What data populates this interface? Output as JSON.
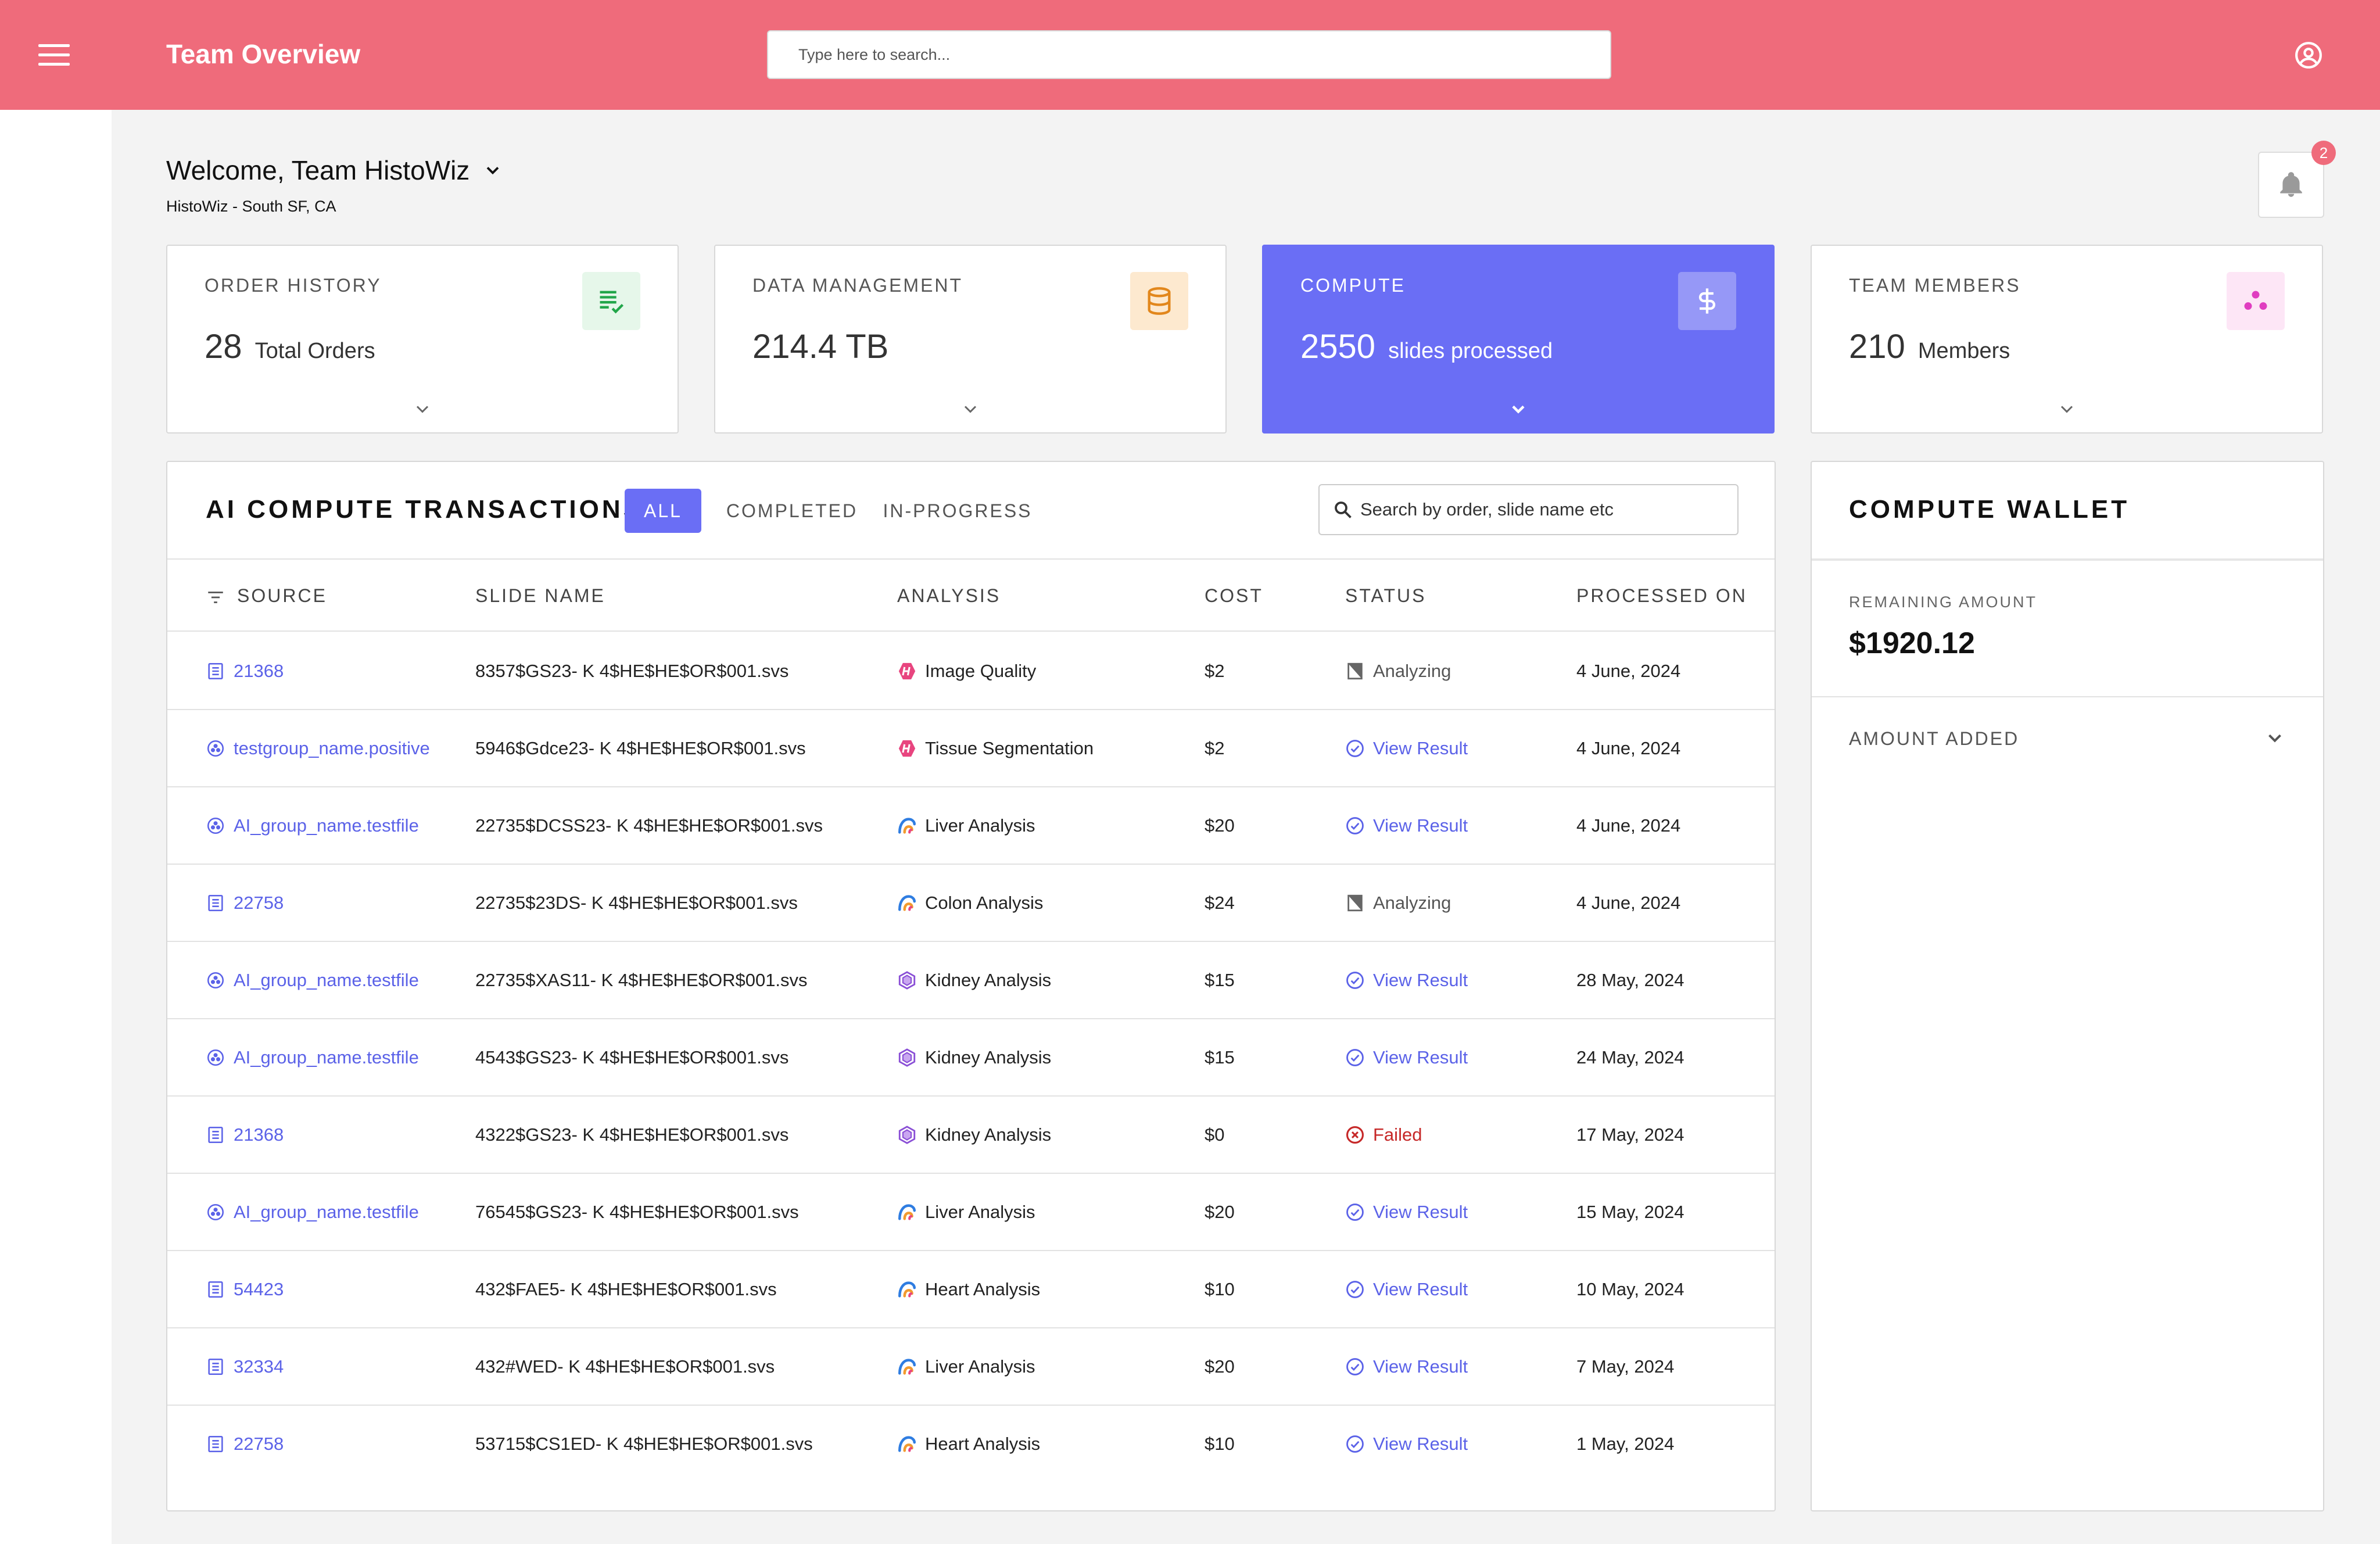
{
  "header": {
    "title": "Team Overview",
    "search_placeholder": "Type here to search..."
  },
  "welcome": {
    "greeting": "Welcome, Team HistoWiz",
    "location": "HistoWiz - South SF, CA",
    "notification_count": "2"
  },
  "cards": [
    {
      "title": "ORDER HISTORY",
      "value": "28",
      "unit": "Total Orders",
      "icon": "list-check-icon",
      "icon_bg": "#e6f7ea",
      "icon_color": "#22a64a"
    },
    {
      "title": "DATA MANAGEMENT",
      "value": "214.4 TB",
      "unit": "",
      "icon": "database-icon",
      "icon_bg": "#fde9cf",
      "icon_color": "#e2871c"
    },
    {
      "title": "COMPUTE",
      "value": "2550",
      "unit": "slides processed",
      "icon": "dollar-icon",
      "icon_bg": "#9698f7",
      "icon_color": "#ffffff",
      "active": true
    },
    {
      "title": "TEAM MEMBERS",
      "value": "210",
      "unit": "Members",
      "icon": "group-dots-icon",
      "icon_bg": "#fde6f6",
      "icon_color": "#e03dc0"
    }
  ],
  "transactions": {
    "title": "AI COMPUTE TRANSACTIONS",
    "tabs": [
      "ALL",
      "COMPLETED",
      "IN-PROGRESS"
    ],
    "active_tab": "ALL",
    "search_placeholder": "Search by order, slide name etc",
    "columns": [
      "SOURCE",
      "SLIDE NAME",
      "ANALYSIS",
      "COST",
      "STATUS",
      "PROCESSED ON"
    ],
    "rows": [
      {
        "source_type": "order",
        "source": "21368",
        "slide": "8357$GS23- K 4$HE$HE$OR$001.svs",
        "analysis_icon": "hexagon-h",
        "analysis": "Image Quality",
        "cost": "$2",
        "status_type": "analyzing",
        "status": "Analyzing",
        "date": "4 June, 2024"
      },
      {
        "source_type": "group",
        "source": "testgroup_name.positive",
        "slide": "5946$Gdce23- K 4$HE$HE$OR$001.svs",
        "analysis_icon": "hexagon-h",
        "analysis": "Tissue Segmentation",
        "cost": "$2",
        "status_type": "result",
        "status": "View Result",
        "date": "4 June, 2024"
      },
      {
        "source_type": "group",
        "source": "AI_group_name.testfile",
        "slide": "22735$DCSS23- K 4$HE$HE$OR$001.svs",
        "analysis_icon": "swirl",
        "analysis": "Liver Analysis",
        "cost": "$20",
        "status_type": "result",
        "status": "View Result",
        "date": "4 June, 2024"
      },
      {
        "source_type": "order",
        "source": "22758",
        "slide": "22735$23DS- K 4$HE$HE$OR$001.svs",
        "analysis_icon": "swirl",
        "analysis": "Colon Analysis",
        "cost": "$24",
        "status_type": "analyzing",
        "status": "Analyzing",
        "date": "4 June, 2024"
      },
      {
        "source_type": "group",
        "source": "AI_group_name.testfile",
        "slide": "22735$XAS11- K 4$HE$HE$OR$001.svs",
        "analysis_icon": "kidney",
        "analysis": "Kidney Analysis",
        "cost": "$15",
        "status_type": "result",
        "status": "View Result",
        "date": "28 May, 2024"
      },
      {
        "source_type": "group",
        "source": "AI_group_name.testfile",
        "slide": "4543$GS23- K 4$HE$HE$OR$001.svs",
        "analysis_icon": "kidney",
        "analysis": "Kidney Analysis",
        "cost": "$15",
        "status_type": "result",
        "status": "View Result",
        "date": "24 May, 2024"
      },
      {
        "source_type": "order",
        "source": "21368",
        "slide": "4322$GS23- K 4$HE$HE$OR$001.svs",
        "analysis_icon": "kidney",
        "analysis": "Kidney Analysis",
        "cost": "$0",
        "status_type": "failed",
        "status": "Failed",
        "date": "17 May, 2024"
      },
      {
        "source_type": "group",
        "source": "AI_group_name.testfile",
        "slide": "76545$GS23- K 4$HE$HE$OR$001.svs",
        "analysis_icon": "swirl",
        "analysis": "Liver Analysis",
        "cost": "$20",
        "status_type": "result",
        "status": "View Result",
        "date": "15 May, 2024"
      },
      {
        "source_type": "order",
        "source": "54423",
        "slide": "432$FAE5- K 4$HE$HE$OR$001.svs",
        "analysis_icon": "swirl",
        "analysis": "Heart Analysis",
        "cost": "$10",
        "status_type": "result",
        "status": "View Result",
        "date": "10 May, 2024"
      },
      {
        "source_type": "order",
        "source": "32334",
        "slide": "432#WED- K 4$HE$HE$OR$001.svs",
        "analysis_icon": "swirl",
        "analysis": "Liver Analysis",
        "cost": "$20",
        "status_type": "result",
        "status": "View Result",
        "date": "7 May, 2024"
      },
      {
        "source_type": "order",
        "source": "22758",
        "slide": "53715$CS1ED- K 4$HE$HE$OR$001.svs",
        "analysis_icon": "swirl",
        "analysis": "Heart Analysis",
        "cost": "$10",
        "status_type": "result",
        "status": "View Result",
        "date": "1 May, 2024"
      }
    ]
  },
  "wallet": {
    "title": "COMPUTE WALLET",
    "remaining_label": "REMAINING AMOUNT",
    "remaining_value": "$1920.12",
    "added_label": "AMOUNT ADDED"
  },
  "colors": {
    "header": "#ef6b7b",
    "accent": "#6a6ef5",
    "link": "#5b62e8",
    "failed": "#c62828"
  }
}
